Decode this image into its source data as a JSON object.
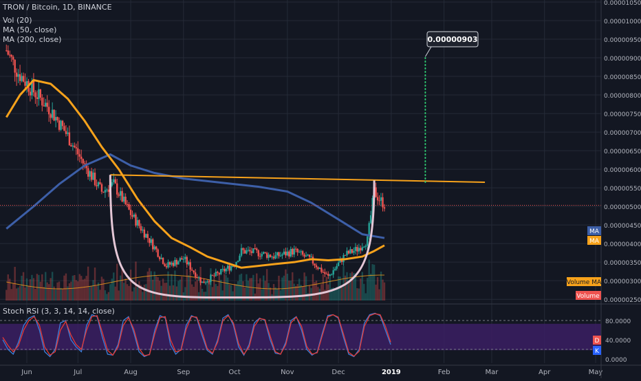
{
  "header": {
    "symbol": "TRON / Bitcoin, 1D, BINANCE",
    "ind_vol": "Vol (20)",
    "ind_ma50": "MA (50, close)",
    "ind_ma200": "MA (200, close)"
  },
  "rsi_label": "Stoch RSI (3, 3, 14, 14, close)",
  "annotation": "0.00000903",
  "badges": {
    "ma1": "MA",
    "ma2": "MA",
    "vol_ma": "Volume MA",
    "vol": "Volume",
    "d": "D",
    "k": "K"
  },
  "colors": {
    "background": "#131722",
    "grid": "#252a37",
    "up": "#26a69a",
    "down": "#ef5350",
    "ma50": "#f7a21b",
    "ma200": "#3d5fa8",
    "cup": "#e4c7d6",
    "resistance": "#f7a21b",
    "target": "#2ecc71",
    "rsi_k": "#3d7fd9",
    "rsi_d": "#e53935",
    "rsi_band": "#3b1f63"
  },
  "chart_data": [
    {
      "type": "candlestick",
      "title": "TRON / Bitcoin, 1D, BINANCE",
      "x_tick_labels": [
        "Jun",
        "Jul",
        "Aug",
        "Sep",
        "Oct",
        "Nov",
        "Dec",
        "2019",
        "Feb",
        "Mar",
        "Apr",
        "May"
      ],
      "y_tick_labels": [
        "0.00001050",
        "0.00001000",
        "0.00000950",
        "0.00000900",
        "0.00000850",
        "0.00000800",
        "0.00000750",
        "0.00000700",
        "0.00000650",
        "0.00000600",
        "0.00000550",
        "0.00000500",
        "0.00000450",
        "0.00000400",
        "0.00000350",
        "0.00000300",
        "0.00000250"
      ],
      "ylim": [
        2.3e-06,
        1.05e-05
      ],
      "grid": true,
      "close_key": [
        [
          "2018-05-20",
          9.2e-06
        ],
        [
          "2018-05-27",
          8.6e-06
        ],
        [
          "2018-06-05",
          8.1e-06
        ],
        [
          "2018-06-15",
          7.6e-06
        ],
        [
          "2018-06-25",
          6.9e-06
        ],
        [
          "2018-07-05",
          6.1e-06
        ],
        [
          "2018-07-15",
          5.4e-06
        ],
        [
          "2018-07-22",
          5.6e-06
        ],
        [
          "2018-08-01",
          4.8e-06
        ],
        [
          "2018-08-12",
          4.1e-06
        ],
        [
          "2018-08-22",
          3.4e-06
        ],
        [
          "2018-09-01",
          3.6e-06
        ],
        [
          "2018-09-12",
          2.95e-06
        ],
        [
          "2018-09-22",
          3.2e-06
        ],
        [
          "2018-10-01",
          3.45e-06
        ],
        [
          "2018-10-05",
          3.8e-06
        ],
        [
          "2018-10-15",
          3.75e-06
        ],
        [
          "2018-10-25",
          3.65e-06
        ],
        [
          "2018-11-05",
          3.8e-06
        ],
        [
          "2018-11-15",
          3.55e-06
        ],
        [
          "2018-11-25",
          3.1e-06
        ],
        [
          "2018-12-05",
          3.7e-06
        ],
        [
          "2018-12-12",
          3.85e-06
        ],
        [
          "2018-12-18",
          4.1e-06
        ],
        [
          "2018-12-22",
          5.4e-06
        ],
        [
          "2018-12-25",
          5.2e-06
        ],
        [
          "2018-12-28",
          5.05e-06
        ]
      ],
      "ma50": [
        [
          "2018-05-20",
          7.4e-06
        ],
        [
          "2018-05-28",
          8e-06
        ],
        [
          "2018-06-05",
          8.4e-06
        ],
        [
          "2018-06-15",
          8.3e-06
        ],
        [
          "2018-06-25",
          7.9e-06
        ],
        [
          "2018-07-05",
          7.3e-06
        ],
        [
          "2018-07-15",
          6.6e-06
        ],
        [
          "2018-07-25",
          6e-06
        ],
        [
          "2018-08-05",
          5.2e-06
        ],
        [
          "2018-08-15",
          4.6e-06
        ],
        [
          "2018-08-25",
          4.15e-06
        ],
        [
          "2018-09-05",
          3.9e-06
        ],
        [
          "2018-09-15",
          3.65e-06
        ],
        [
          "2018-09-25",
          3.5e-06
        ],
        [
          "2018-10-05",
          3.35e-06
        ],
        [
          "2018-10-15",
          3.4e-06
        ],
        [
          "2018-10-25",
          3.45e-06
        ],
        [
          "2018-11-05",
          3.5e-06
        ],
        [
          "2018-11-15",
          3.58e-06
        ],
        [
          "2018-11-25",
          3.55e-06
        ],
        [
          "2018-12-05",
          3.58e-06
        ],
        [
          "2018-12-15",
          3.65e-06
        ],
        [
          "2018-12-22",
          3.8e-06
        ],
        [
          "2018-12-28",
          3.95e-06
        ]
      ],
      "ma200": [
        [
          "2018-05-20",
          4.4e-06
        ],
        [
          "2018-06-05",
          5e-06
        ],
        [
          "2018-06-20",
          5.6e-06
        ],
        [
          "2018-07-05",
          6.1e-06
        ],
        [
          "2018-07-20",
          6.4e-06
        ],
        [
          "2018-08-01",
          6.1e-06
        ],
        [
          "2018-08-15",
          5.9e-06
        ],
        [
          "2018-09-01",
          5.75e-06
        ],
        [
          "2018-09-15",
          5.68e-06
        ],
        [
          "2018-10-01",
          5.6e-06
        ],
        [
          "2018-10-15",
          5.53e-06
        ],
        [
          "2018-11-01",
          5.4e-06
        ],
        [
          "2018-11-15",
          5.1e-06
        ],
        [
          "2018-12-01",
          4.65e-06
        ],
        [
          "2018-12-15",
          4.25e-06
        ],
        [
          "2018-12-28",
          4.15e-06
        ]
      ],
      "resistance_line": [
        [
          "2018-07-20",
          5.85e-06
        ],
        [
          "2019-02-25",
          5.65e-06
        ]
      ],
      "cup": {
        "left": [
          "2018-07-20",
          5.85e-06
        ],
        "bottom": [
          "2018-10-05",
          2.55e-06
        ],
        "right": [
          "2018-12-22",
          5.7e-06
        ]
      },
      "target": {
        "from": [
          "2019-01-21",
          5.65e-06
        ],
        "to": [
          "2019-01-21",
          9.03e-06
        ],
        "label": "0.00000903"
      },
      "last_price_line": 5.03e-06
    },
    {
      "type": "line",
      "title": "Stoch RSI (3, 3, 14, 14, close)",
      "y_tick_labels": [
        "80.0000",
        "40.0000",
        "0.0000"
      ],
      "ylim": [
        0,
        100
      ],
      "band": [
        20,
        80
      ],
      "series": [
        {
          "name": "K",
          "values": [
            40,
            20,
            10,
            35,
            70,
            85,
            90,
            60,
            15,
            5,
            20,
            75,
            80,
            40,
            25,
            15,
            70,
            92,
            88,
            45,
            10,
            8,
            30,
            80,
            88,
            55,
            15,
            5,
            10,
            60,
            90,
            85,
            30,
            10,
            20,
            70,
            90,
            85,
            50,
            18,
            10,
            40,
            85,
            92,
            70,
            25,
            8,
            30,
            75,
            85,
            80,
            40,
            12,
            10,
            35,
            80,
            88,
            60,
            20,
            8,
            15,
            55,
            90,
            92,
            85,
            45,
            10,
            5,
            20,
            75,
            92,
            95,
            90,
            60,
            30
          ]
        },
        {
          "name": "D",
          "values": [
            45,
            28,
            15,
            28,
            60,
            80,
            88,
            70,
            25,
            8,
            15,
            60,
            78,
            50,
            30,
            20,
            60,
            88,
            90,
            55,
            18,
            8,
            25,
            70,
            86,
            62,
            22,
            7,
            9,
            52,
            86,
            88,
            40,
            15,
            18,
            62,
            88,
            87,
            58,
            22,
            12,
            35,
            80,
            90,
            75,
            32,
            10,
            25,
            68,
            84,
            82,
            48,
            15,
            10,
            30,
            75,
            87,
            68,
            26,
            10,
            13,
            50,
            87,
            92,
            87,
            52,
            14,
            6,
            16,
            68,
            90,
            94,
            92,
            68,
            35
          ]
        }
      ]
    }
  ]
}
